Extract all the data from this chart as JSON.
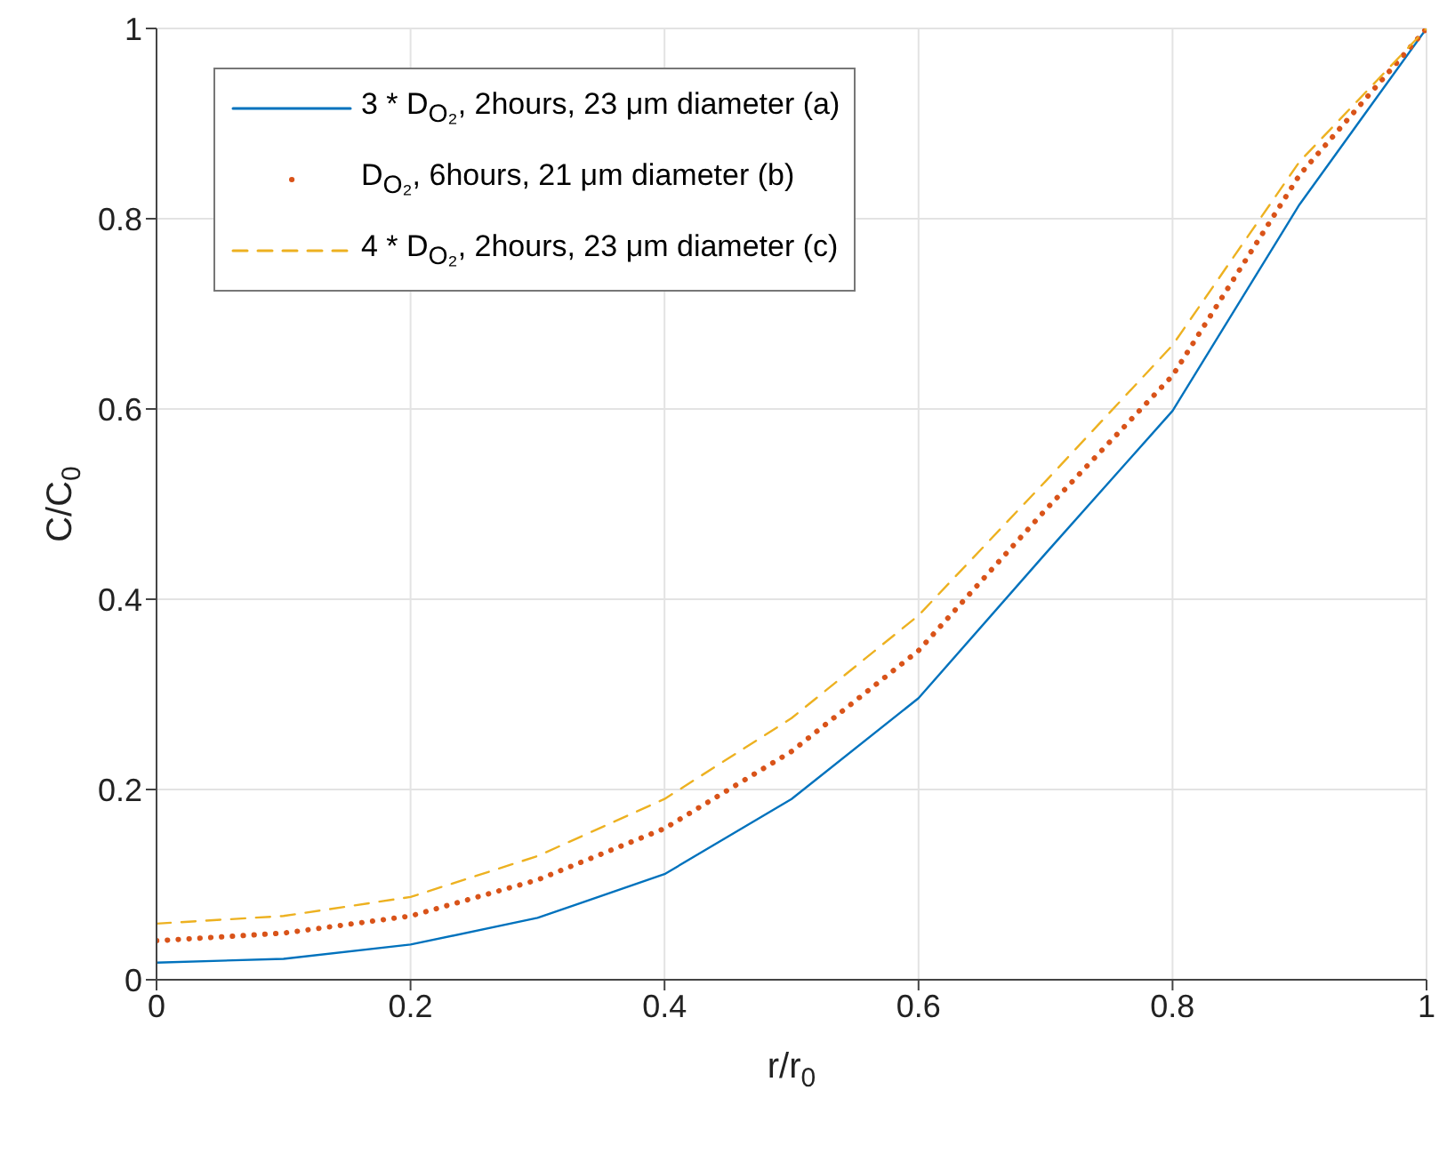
{
  "chart_data": {
    "type": "line",
    "xlabel": "r/r$_{0}$",
    "ylabel": "C/C$_{0}$",
    "x": [
      0,
      0.1,
      0.2,
      0.3,
      0.4,
      0.5,
      0.6,
      0.7,
      0.8,
      0.9,
      1.0
    ],
    "series": [
      {
        "name": "3 * D$_{O₂}$, 2hours, 23  μm diameter (a)",
        "color": "#0072bd",
        "line_style": "solid",
        "values": [
          0.018,
          0.022,
          0.037,
          0.065,
          0.111,
          0.19,
          0.296,
          0.448,
          0.598,
          0.815,
          1.0
        ]
      },
      {
        "name": "D$_{O₂}$, 6hours, 21  μm diameter (b)",
        "color": "#d95319",
        "line_style": "dotted",
        "values": [
          0.041,
          0.049,
          0.067,
          0.105,
          0.159,
          0.24,
          0.346,
          0.494,
          0.635,
          0.846,
          1.0
        ]
      },
      {
        "name": "4 * D$_{O₂}$, 2hours, 23  μm diameter (c)",
        "color": "#edb120",
        "line_style": "dashed",
        "values": [
          0.059,
          0.067,
          0.087,
          0.13,
          0.19,
          0.275,
          0.383,
          0.524,
          0.667,
          0.86,
          1.0
        ]
      }
    ],
    "xlim": [
      0,
      1
    ],
    "xticks": [
      0,
      0.2,
      0.4,
      0.6,
      0.8,
      1
    ],
    "ylim": [
      0,
      1
    ],
    "yticks": [
      0,
      0.2,
      0.4,
      0.6,
      0.8,
      1
    ],
    "grid": true,
    "legend": "top left",
    "marker": "none"
  }
}
